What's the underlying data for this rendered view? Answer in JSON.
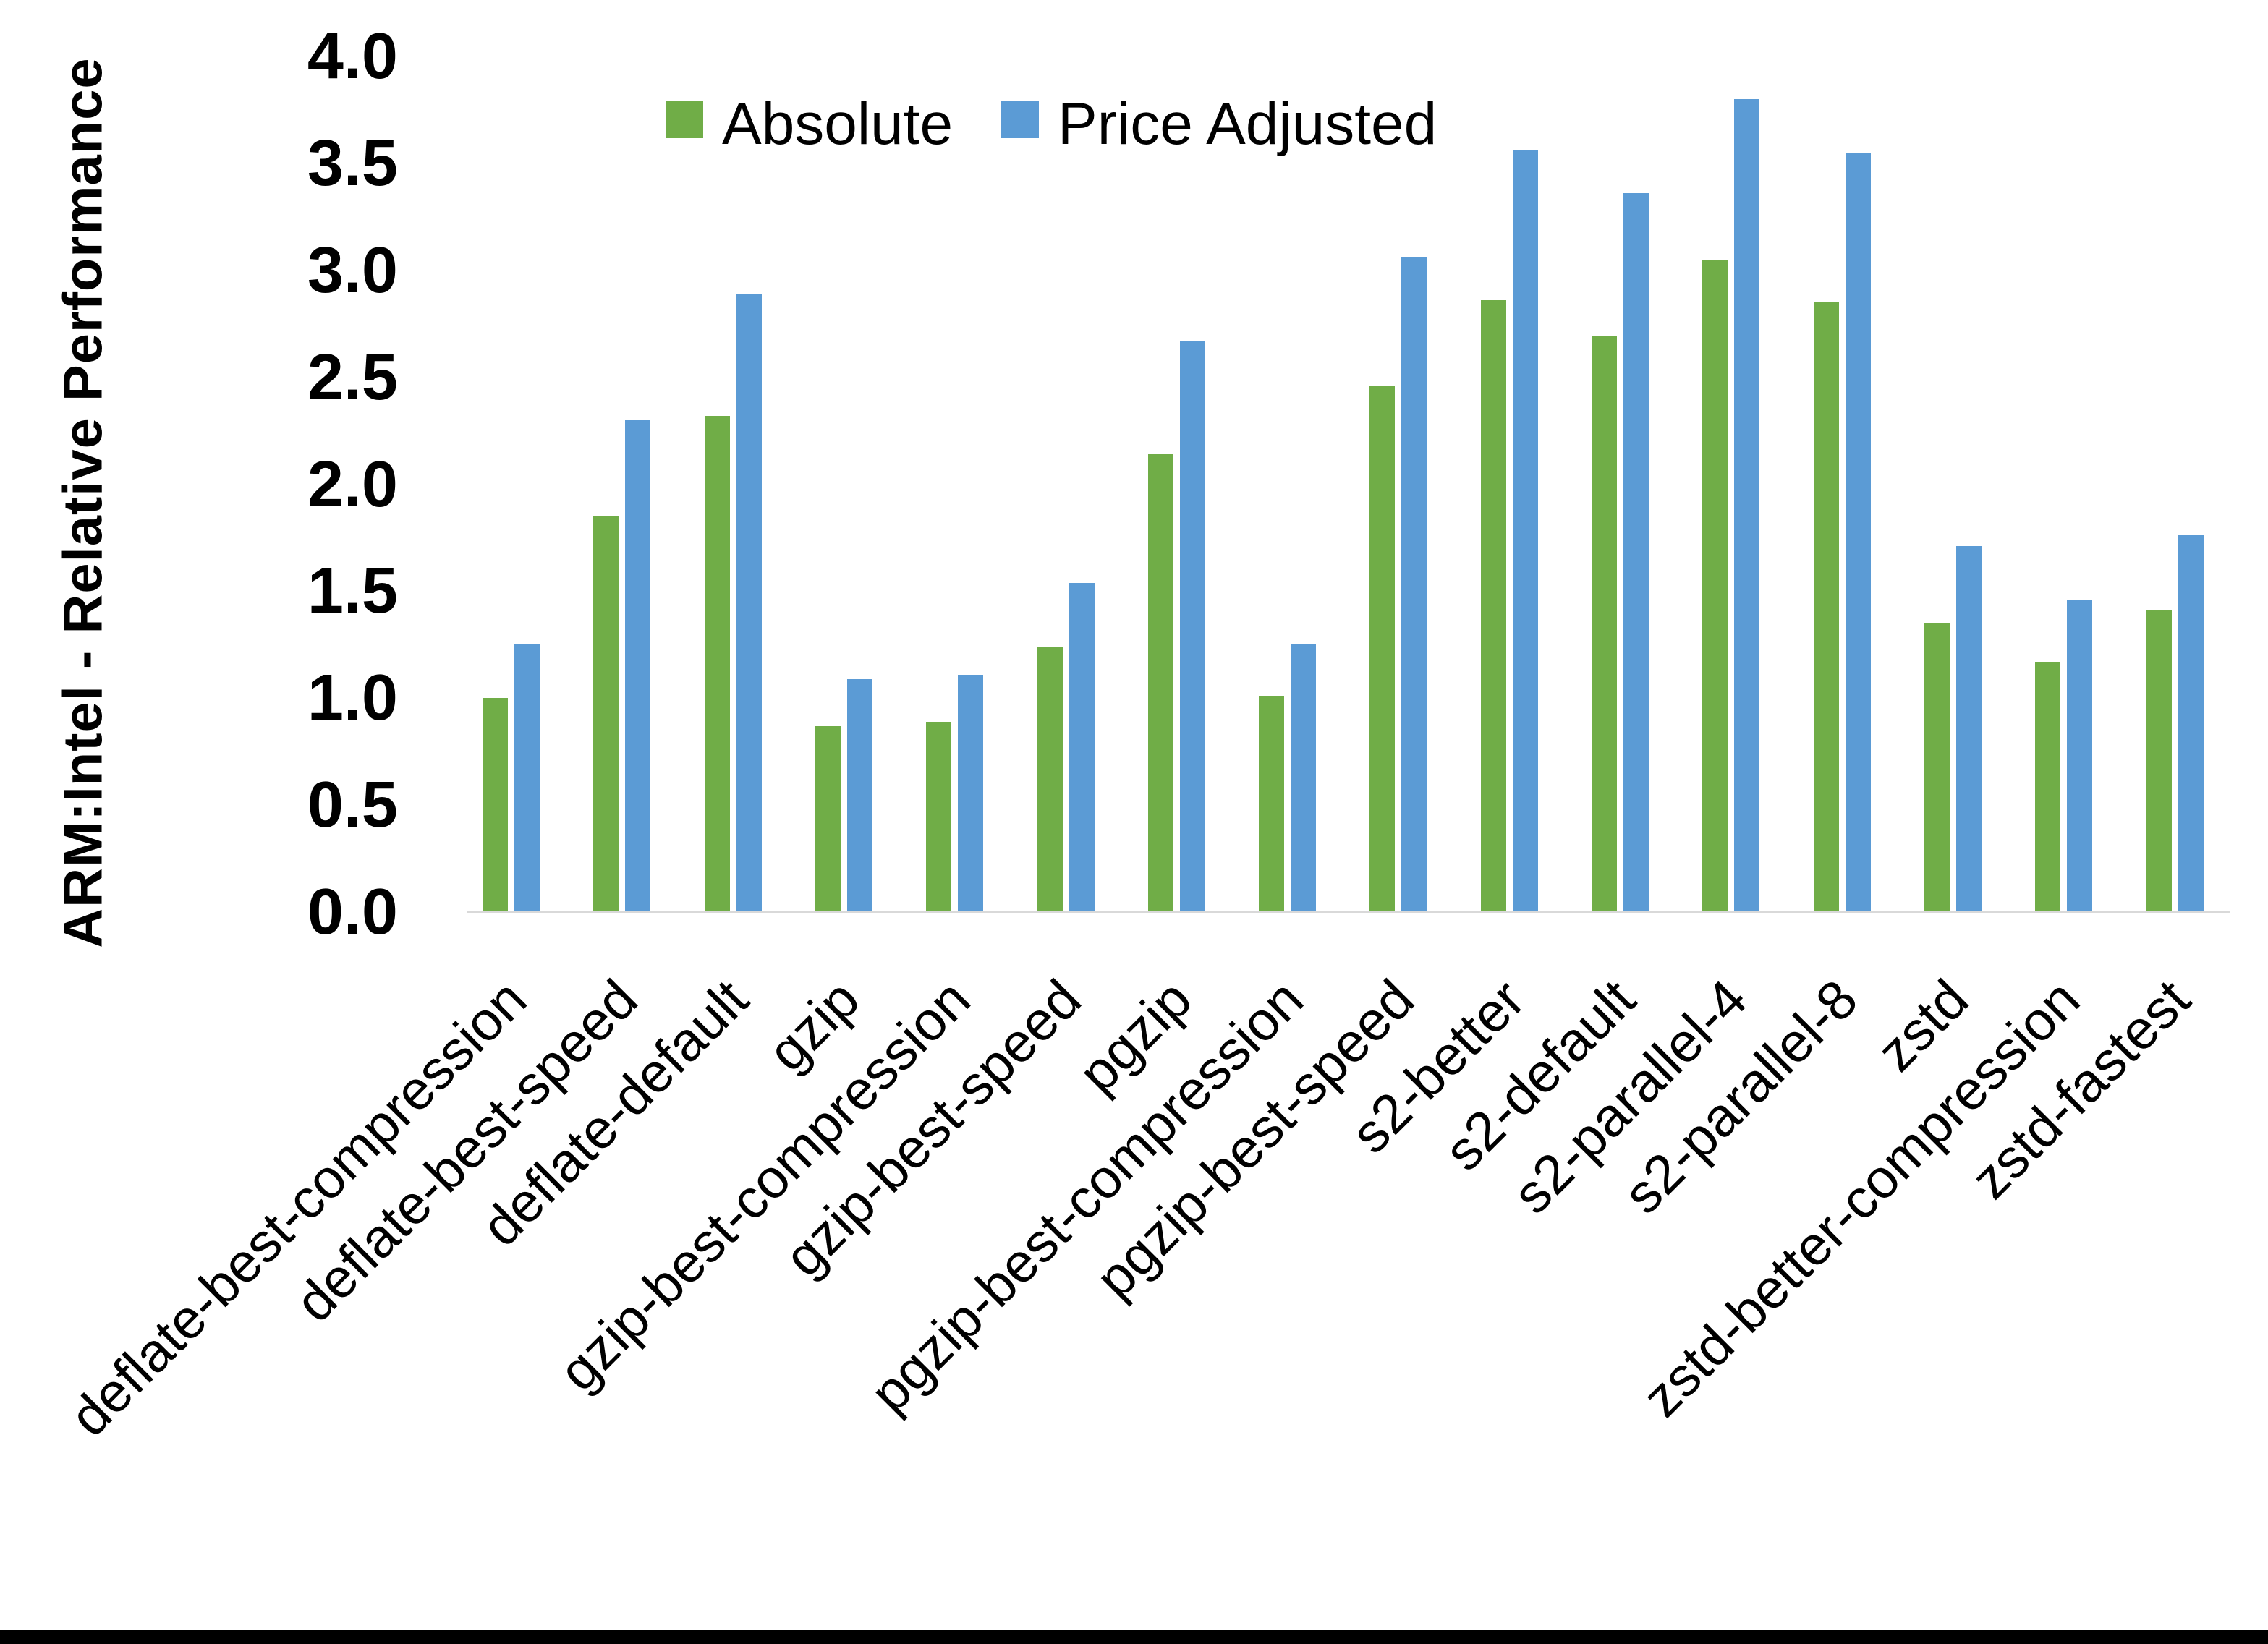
{
  "page": {
    "background": "#FFFFFF",
    "bottom_border_color": "#000000"
  },
  "chart_data": {
    "type": "bar",
    "title": "",
    "xlabel": "",
    "ylabel": "ARM:Intel - Relative Performance",
    "ylim": [
      0.0,
      4.0
    ],
    "y_tick_step": 0.5,
    "y_ticks": [
      "4.0",
      "3.5",
      "3.0",
      "2.5",
      "2.0",
      "1.5",
      "1.0",
      "0.5",
      "0.0"
    ],
    "grid": "off",
    "legend_position": "top-center",
    "axis_line_color": "#D9D9D9",
    "text_color": "#000000",
    "categories": [
      "deflate-best-compression",
      "deflate-best-speed",
      "deflate-default",
      "gzip",
      "gzip-best-compression",
      "gzip-best-speed",
      "pgzip",
      "pgzip-best-compression",
      "pgzip-best-speed",
      "s2-better",
      "s2-default",
      "s2-parallel-4",
      "s2-parallel-8",
      "zstd",
      "zstd-better-compression",
      "zstd-fastest"
    ],
    "series": [
      {
        "name": "Absolute",
        "color": "#70AD47",
        "values": [
          1.0,
          1.85,
          2.32,
          0.87,
          0.89,
          1.24,
          2.14,
          1.01,
          2.46,
          2.86,
          2.69,
          3.05,
          2.85,
          1.35,
          1.17,
          1.41
        ]
      },
      {
        "name": "Price Adjusted",
        "color": "#5B9BD5",
        "values": [
          1.25,
          2.3,
          2.89,
          1.09,
          1.11,
          1.54,
          2.67,
          1.25,
          3.06,
          3.56,
          3.36,
          3.8,
          3.55,
          1.71,
          1.46,
          1.76
        ]
      }
    ]
  }
}
